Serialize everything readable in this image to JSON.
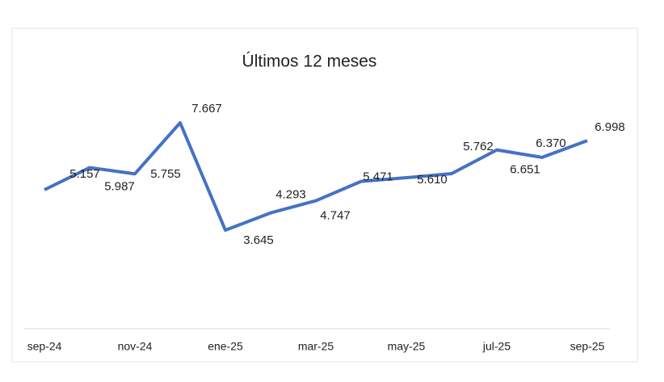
{
  "chart_data": {
    "type": "line",
    "title": "Últimos 12 meses",
    "categories": [
      "sep-24",
      null,
      "nov-24",
      null,
      "ene-25",
      null,
      "mar-25",
      null,
      "may-25",
      null,
      "jul-25",
      null,
      "sep-25"
    ],
    "series": [
      {
        "color": "#4472c4",
        "values": [
          5.157,
          5.987,
          5.755,
          7.667,
          3.645,
          4.293,
          4.747,
          5.471,
          5.61,
          5.762,
          6.651,
          6.37,
          6.998
        ],
        "value_labels": [
          "5.157",
          "5.987",
          "5.755",
          "7.667",
          "3.645",
          "4.293",
          "4.747",
          "5.471",
          "5.610",
          "5.762",
          "6.651",
          "6.370",
          "6.998"
        ]
      }
    ]
  }
}
